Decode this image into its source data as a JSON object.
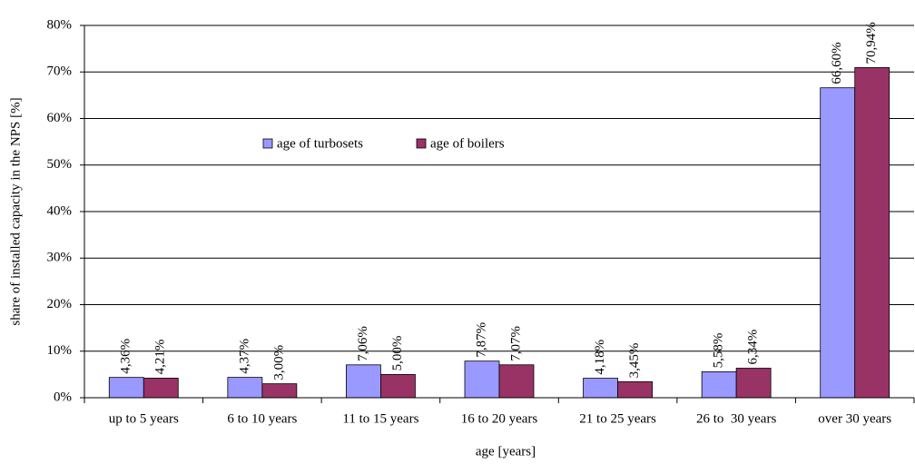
{
  "chart_data": {
    "type": "bar",
    "x_label": "age [years]",
    "y_label": "share of installed capacity in the NPS [%]",
    "categories": [
      "up to 5 years",
      "6 to 10 years",
      "11 to 15 years",
      "16 to 20 years",
      "21 to 25 years",
      "26 to  30 years",
      "over 30 years"
    ],
    "series": [
      {
        "name": "age of turbosets",
        "color": "#9999ff",
        "values": [
          4.36,
          4.37,
          7.06,
          7.87,
          4.18,
          5.58,
          66.6
        ],
        "value_labels": [
          "4,36%",
          "4,37%",
          "7,06%",
          "7,87%",
          "4,18%",
          "5,58%",
          "66,60%"
        ]
      },
      {
        "name": "age of boilers",
        "color": "#993366",
        "values": [
          4.21,
          3.0,
          5.0,
          7.07,
          3.45,
          6.34,
          70.94
        ],
        "value_labels": [
          "4,21%",
          "3,00%",
          "5,00%",
          "7,07%",
          "3,45%",
          "6,34%",
          "70,94%"
        ]
      }
    ],
    "ylim": [
      0,
      80
    ],
    "yticks": [
      {
        "value": 0,
        "label": "0%"
      },
      {
        "value": 10,
        "label": "10%"
      },
      {
        "value": 20,
        "label": "20%"
      },
      {
        "value": 30,
        "label": "30%"
      },
      {
        "value": 40,
        "label": "40%"
      },
      {
        "value": 50,
        "label": "50%"
      },
      {
        "value": 60,
        "label": "60%"
      },
      {
        "value": 70,
        "label": "70%"
      },
      {
        "value": 80,
        "label": "80%"
      }
    ],
    "grid": true
  }
}
